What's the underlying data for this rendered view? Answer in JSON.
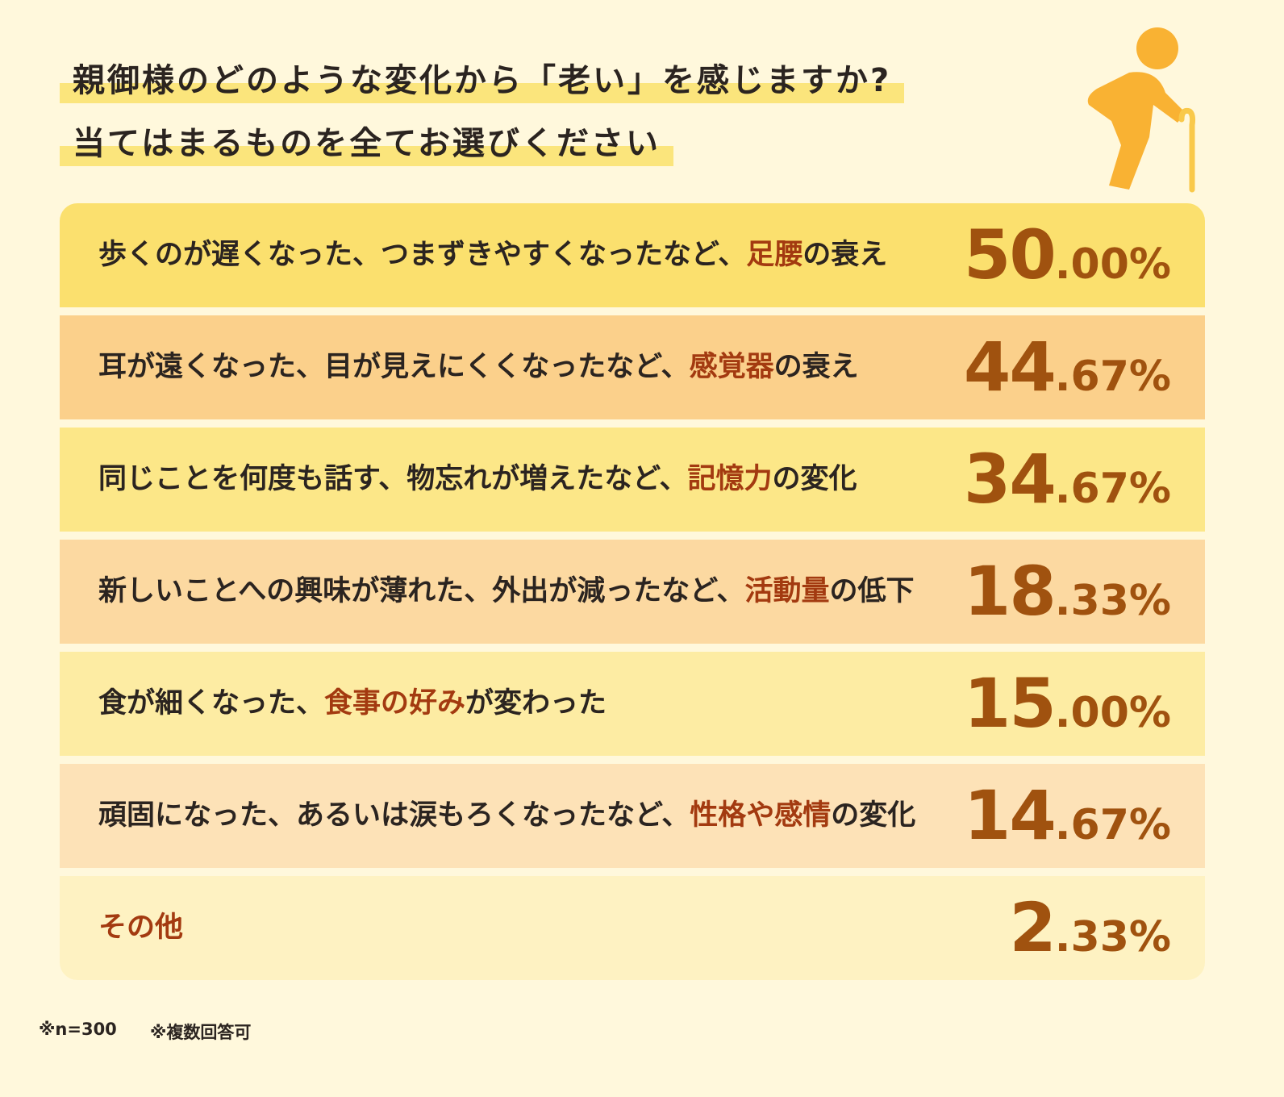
{
  "header": {
    "lines": [
      "親御様のどのような変化から「老い」を感じますか?",
      "当てはまるものを全てお選びください"
    ]
  },
  "rows": [
    {
      "label": [
        {
          "text": "歩くのが遅くなった、つまずきやすくなったなど、",
          "highlight": false
        },
        {
          "text": "足腰",
          "highlight": true
        },
        {
          "text": "の衰え",
          "highlight": false
        }
      ],
      "value": "50.00%",
      "color": "#fbe06e"
    },
    {
      "label": [
        {
          "text": "耳が遠くなった、目が見えにくくなったなど、",
          "highlight": false
        },
        {
          "text": "感覚器",
          "highlight": true
        },
        {
          "text": "の衰え",
          "highlight": false
        }
      ],
      "value": "44.67%",
      "color": "#fbd08b"
    },
    {
      "label": [
        {
          "text": "同じことを何度も話す、物忘れが増えたなど、",
          "highlight": false
        },
        {
          "text": "記憶力",
          "highlight": true
        },
        {
          "text": "の変化",
          "highlight": false
        }
      ],
      "value": "34.67%",
      "color": "#fce788"
    },
    {
      "label": [
        {
          "text": "新しいことへの興味が薄れた、外出が減ったなど、",
          "highlight": false
        },
        {
          "text": "活動量",
          "highlight": true
        },
        {
          "text": "の低下",
          "highlight": false
        }
      ],
      "value": "18.33%",
      "color": "#fcd9a1"
    },
    {
      "label": [
        {
          "text": "食が細くなった、",
          "highlight": false
        },
        {
          "text": "食事の好み",
          "highlight": true
        },
        {
          "text": "が変わった",
          "highlight": false
        }
      ],
      "value": "15.00%",
      "color": "#fdeca3"
    },
    {
      "label": [
        {
          "text": "頑固になった、あるいは涙もろくなったなど、",
          "highlight": false
        },
        {
          "text": "性格や感情",
          "highlight": true
        },
        {
          "text": "の変化",
          "highlight": false
        }
      ],
      "value": "14.67%",
      "color": "#fde2b7"
    },
    {
      "label": [
        {
          "text": "その他",
          "highlight": true
        }
      ],
      "value": "2.33%",
      "color": "#fef2c2"
    }
  ],
  "footnotes": [
    "※n=300",
    "※複数回答可"
  ]
}
